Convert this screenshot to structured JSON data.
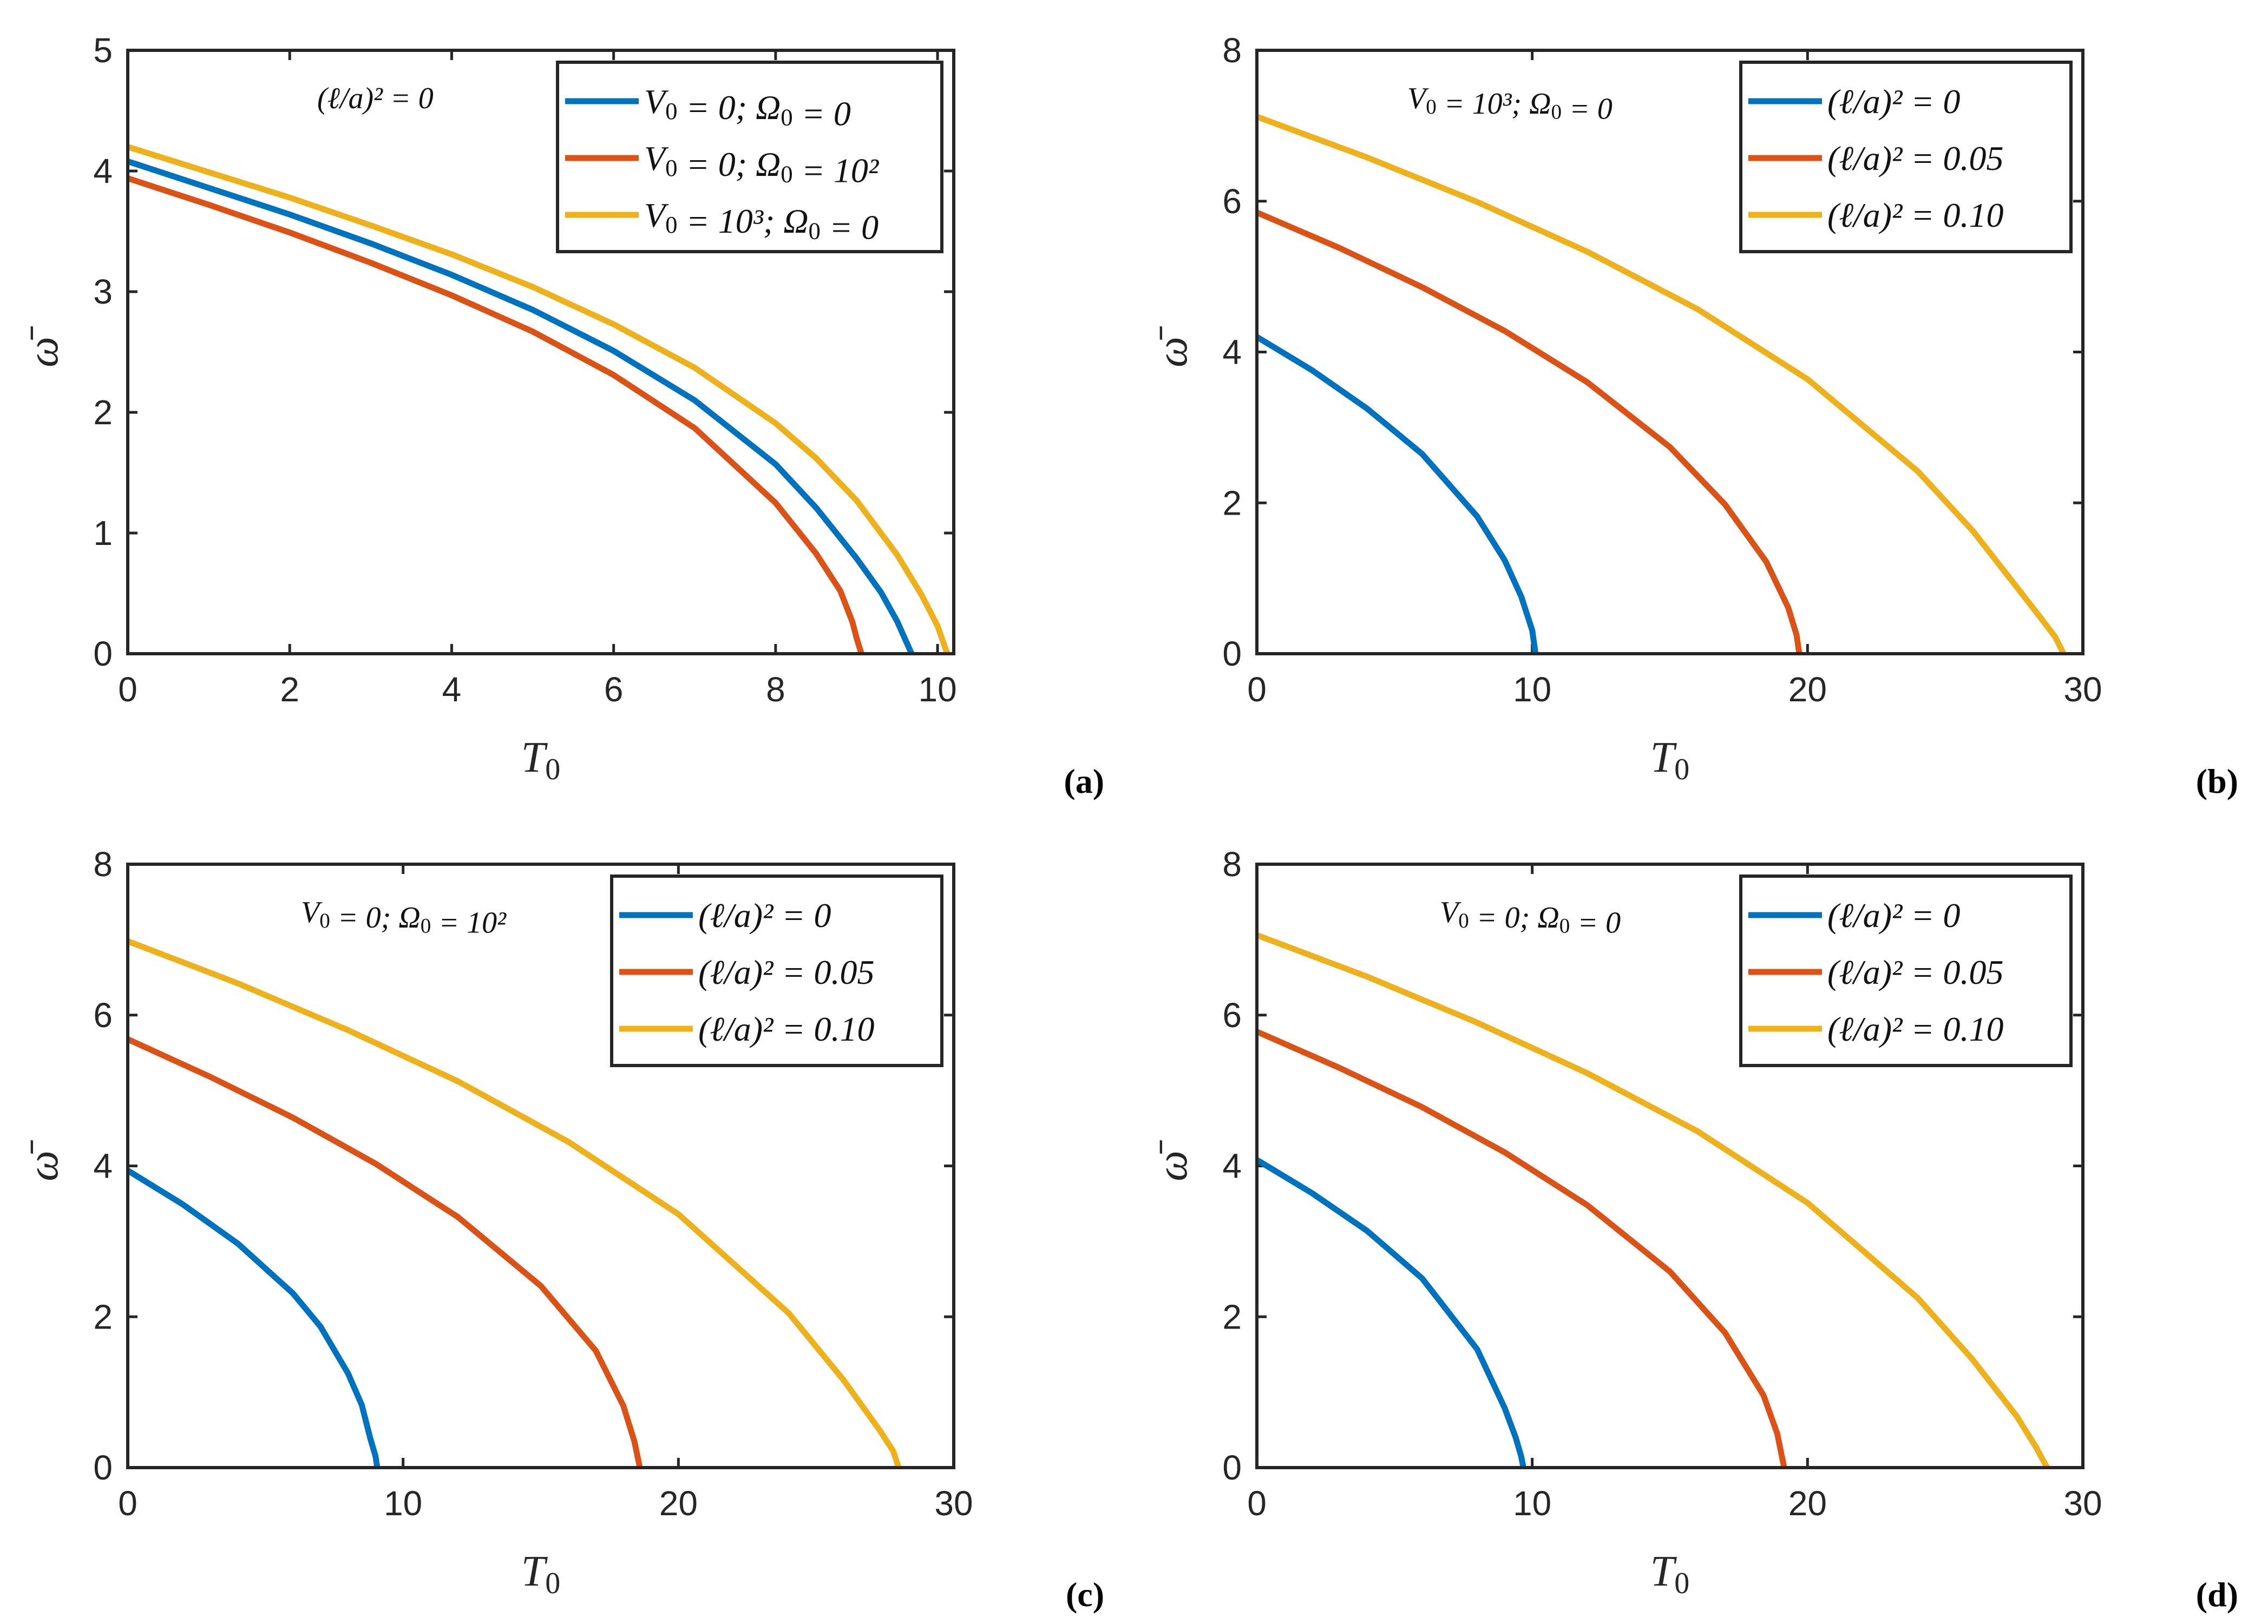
{
  "chart_data": [
    {
      "panel": "(a)",
      "type": "line",
      "xlabel": "T0",
      "ylabel": "ω̄",
      "xlim": [
        0,
        10.2
      ],
      "ylim": [
        0,
        5
      ],
      "xticks": [
        "0",
        "2",
        "4",
        "6",
        "8",
        "10"
      ],
      "yticks": [
        "0",
        "1",
        "2",
        "3",
        "4",
        "5"
      ],
      "annotation": "(ℓ/a)² = 0",
      "legend_position": "top-right",
      "series": [
        {
          "name": "V0 = 0; Ω0 = 0",
          "color": "#0072BD",
          "x": [
            0,
            1,
            2,
            3,
            4,
            5,
            6,
            7,
            8,
            8.5,
            9,
            9.3,
            9.5,
            9.6,
            9.68
          ],
          "y": [
            4.08,
            3.86,
            3.64,
            3.4,
            3.14,
            2.85,
            2.51,
            2.1,
            1.57,
            1.21,
            0.79,
            0.51,
            0.27,
            0.12,
            0
          ]
        },
        {
          "name": "V0 = 0; Ω0 = 10²",
          "color": "#D95319",
          "x": [
            0,
            1,
            2,
            3,
            4,
            5,
            6,
            7,
            8,
            8.5,
            8.8,
            8.95,
            9.0,
            9.06
          ],
          "y": [
            3.94,
            3.72,
            3.49,
            3.24,
            2.97,
            2.67,
            2.31,
            1.87,
            1.25,
            0.83,
            0.52,
            0.26,
            0.13,
            0
          ]
        },
        {
          "name": "V0 = 10³; Ω0 = 0",
          "color": "#EDB120",
          "x": [
            0,
            1,
            2,
            3,
            4,
            5,
            6,
            7,
            8,
            8.5,
            9,
            9.5,
            9.8,
            10.0,
            10.12
          ],
          "y": [
            4.2,
            3.99,
            3.78,
            3.55,
            3.31,
            3.04,
            2.73,
            2.37,
            1.91,
            1.62,
            1.27,
            0.82,
            0.49,
            0.23,
            0
          ]
        }
      ]
    },
    {
      "panel": "(b)",
      "type": "line",
      "xlabel": "T0",
      "ylabel": "ω̄",
      "xlim": [
        0,
        30
      ],
      "ylim": [
        0,
        8
      ],
      "xticks": [
        "0",
        "10",
        "20",
        "30"
      ],
      "yticks": [
        "0",
        "2",
        "4",
        "6",
        "8"
      ],
      "annotation": "V0 = 10³; Ω0 = 0",
      "legend_position": "top-right",
      "series": [
        {
          "name": "(ℓ/a)² = 0",
          "color": "#0072BD",
          "x": [
            0,
            2,
            4,
            6,
            8,
            9,
            9.6,
            10.0,
            10.12
          ],
          "y": [
            4.2,
            3.76,
            3.25,
            2.65,
            1.82,
            1.24,
            0.76,
            0.31,
            0
          ]
        },
        {
          "name": "(ℓ/a)² = 0.05",
          "color": "#D95319",
          "x": [
            0,
            3,
            6,
            9,
            12,
            15,
            17,
            18.5,
            19.3,
            19.6,
            19.7
          ],
          "y": [
            5.85,
            5.38,
            4.86,
            4.28,
            3.6,
            2.74,
            1.98,
            1.22,
            0.61,
            0.25,
            0
          ]
        },
        {
          "name": "(ℓ/a)² = 0.10",
          "color": "#EDB120",
          "x": [
            0,
            4,
            8,
            12,
            16,
            20,
            24,
            26,
            27.5,
            28.5,
            29.0,
            29.3
          ],
          "y": [
            7.12,
            6.58,
            5.99,
            5.33,
            4.57,
            3.64,
            2.42,
            1.63,
            0.93,
            0.46,
            0.22,
            0
          ]
        }
      ]
    },
    {
      "panel": "(c)",
      "type": "line",
      "xlabel": "T0",
      "ylabel": "ω̄",
      "xlim": [
        0,
        30
      ],
      "ylim": [
        0,
        8
      ],
      "xticks": [
        "0",
        "10",
        "20",
        "30"
      ],
      "yticks": [
        "0",
        "2",
        "4",
        "6",
        "8"
      ],
      "annotation": "V0 = 0; Ω0 = 10²",
      "legend_position": "top-right",
      "series": [
        {
          "name": "(ℓ/a)² = 0",
          "color": "#0072BD",
          "x": [
            0,
            2,
            4,
            6,
            7,
            8,
            8.5,
            8.8,
            9.0,
            9.06
          ],
          "y": [
            3.94,
            3.49,
            2.97,
            2.31,
            1.87,
            1.25,
            0.83,
            0.4,
            0.15,
            0
          ]
        },
        {
          "name": "(ℓ/a)² = 0.05",
          "color": "#D95319",
          "x": [
            0,
            3,
            6,
            9,
            12,
            15,
            17,
            18,
            18.4,
            18.6
          ],
          "y": [
            5.68,
            5.18,
            4.64,
            4.03,
            3.32,
            2.41,
            1.55,
            0.82,
            0.35,
            0
          ]
        },
        {
          "name": "(ℓ/a)² = 0.10",
          "color": "#EDB120",
          "x": [
            0,
            4,
            8,
            12,
            16,
            20,
            24,
            26,
            27.3,
            27.8,
            28.0
          ],
          "y": [
            6.98,
            6.42,
            5.8,
            5.12,
            4.32,
            3.36,
            2.05,
            1.16,
            0.5,
            0.22,
            0
          ]
        }
      ]
    },
    {
      "panel": "(d)",
      "type": "line",
      "xlabel": "T0",
      "ylabel": "ω̄",
      "xlim": [
        0,
        30
      ],
      "ylim": [
        0,
        8
      ],
      "xticks": [
        "0",
        "10",
        "20",
        "30"
      ],
      "yticks": [
        "0",
        "2",
        "4",
        "6",
        "8"
      ],
      "annotation": "V0 = 0; Ω0 = 0",
      "legend_position": "top-right",
      "series": [
        {
          "name": "(ℓ/a)² = 0",
          "color": "#0072BD",
          "x": [
            0,
            2,
            4,
            6,
            8,
            9,
            9.4,
            9.6,
            9.68
          ],
          "y": [
            4.08,
            3.64,
            3.14,
            2.51,
            1.57,
            0.79,
            0.4,
            0.15,
            0
          ]
        },
        {
          "name": "(ℓ/a)² = 0.05",
          "color": "#D95319",
          "x": [
            0,
            3,
            6,
            9,
            12,
            15,
            17,
            18.4,
            18.9,
            19.15
          ],
          "y": [
            5.78,
            5.3,
            4.78,
            4.18,
            3.48,
            2.6,
            1.79,
            0.96,
            0.45,
            0
          ]
        },
        {
          "name": "(ℓ/a)² = 0.10",
          "color": "#EDB120",
          "x": [
            0,
            4,
            8,
            12,
            16,
            20,
            24,
            26,
            27.6,
            28.3,
            28.7
          ],
          "y": [
            7.06,
            6.51,
            5.9,
            5.23,
            4.46,
            3.51,
            2.25,
            1.43,
            0.68,
            0.27,
            0
          ]
        }
      ]
    }
  ]
}
